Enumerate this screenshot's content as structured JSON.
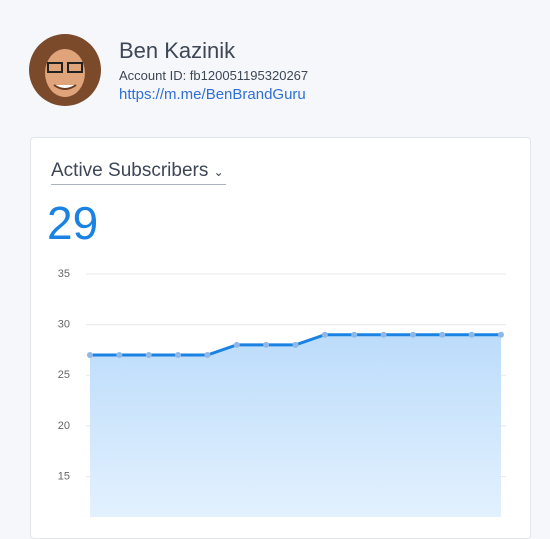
{
  "profile": {
    "name": "Ben Kazinik",
    "account_id": "Account ID: fb120051195320267",
    "url": "https://m.me/BenBrandGuru"
  },
  "card": {
    "title": "Active Subscribers",
    "value": 29,
    "chart_data": {
      "type": "area",
      "color": "#1a82e2",
      "values": [
        27,
        27,
        27,
        27,
        27,
        28,
        28,
        28,
        29,
        29,
        29,
        29,
        29,
        29,
        29
      ],
      "ylim": [
        11,
        35
      ],
      "yticks": [
        15,
        20,
        25,
        30,
        35
      ],
      "grid": true
    }
  }
}
